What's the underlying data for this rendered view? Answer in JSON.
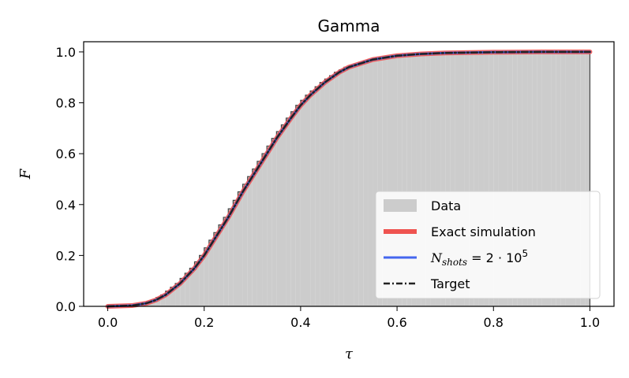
{
  "chart_data": {
    "type": "line",
    "title": "Gamma",
    "xlabel": "τ",
    "ylabel": "F",
    "xlim": [
      -0.05,
      1.05
    ],
    "ylim": [
      0,
      1.04
    ],
    "xticks": [
      "0.0",
      "0.2",
      "0.4",
      "0.6",
      "0.8",
      "1.0"
    ],
    "yticks": [
      "0.0",
      "0.2",
      "0.4",
      "0.6",
      "0.8",
      "1.0"
    ],
    "grid": false,
    "legend_position": "lower-right",
    "legend": {
      "data": "Data",
      "exact": "Exact simulation",
      "nshots_base": "N",
      "nshots_sub": "shots",
      "nshots_rest": " = 2 · 10",
      "nshots_exp": "5",
      "target": "Target"
    },
    "x": [
      0.0,
      0.05,
      0.08,
      0.1,
      0.12,
      0.15,
      0.18,
      0.2,
      0.22,
      0.25,
      0.28,
      0.3,
      0.32,
      0.35,
      0.38,
      0.4,
      0.42,
      0.45,
      0.48,
      0.5,
      0.55,
      0.6,
      0.65,
      0.7,
      0.8,
      0.9,
      1.0
    ],
    "series": [
      {
        "name": "Exact simulation",
        "color": "#ef5350",
        "values": [
          0.0,
          0.003,
          0.012,
          0.025,
          0.045,
          0.09,
          0.15,
          0.2,
          0.26,
          0.35,
          0.45,
          0.51,
          0.57,
          0.66,
          0.74,
          0.79,
          0.83,
          0.88,
          0.92,
          0.94,
          0.97,
          0.985,
          0.992,
          0.996,
          0.999,
          1.0,
          1.0
        ]
      },
      {
        "name": "N_shots = 2·10^5",
        "color": "#4466ee",
        "values": [
          0.0,
          0.003,
          0.012,
          0.025,
          0.045,
          0.09,
          0.15,
          0.2,
          0.26,
          0.35,
          0.45,
          0.51,
          0.57,
          0.66,
          0.74,
          0.79,
          0.83,
          0.88,
          0.92,
          0.94,
          0.97,
          0.985,
          0.992,
          0.996,
          0.999,
          1.0,
          1.0
        ]
      },
      {
        "name": "Target",
        "color": "#222222",
        "values": [
          0.0,
          0.003,
          0.012,
          0.025,
          0.045,
          0.09,
          0.15,
          0.2,
          0.26,
          0.35,
          0.45,
          0.51,
          0.57,
          0.66,
          0.74,
          0.79,
          0.83,
          0.88,
          0.92,
          0.94,
          0.97,
          0.985,
          0.992,
          0.996,
          0.999,
          1.0,
          1.0
        ]
      }
    ],
    "histogram": {
      "name": "Data",
      "color": "#cccccc",
      "edge_color": "#444444",
      "bins": 100,
      "range": [
        0.0,
        1.0
      ]
    }
  }
}
